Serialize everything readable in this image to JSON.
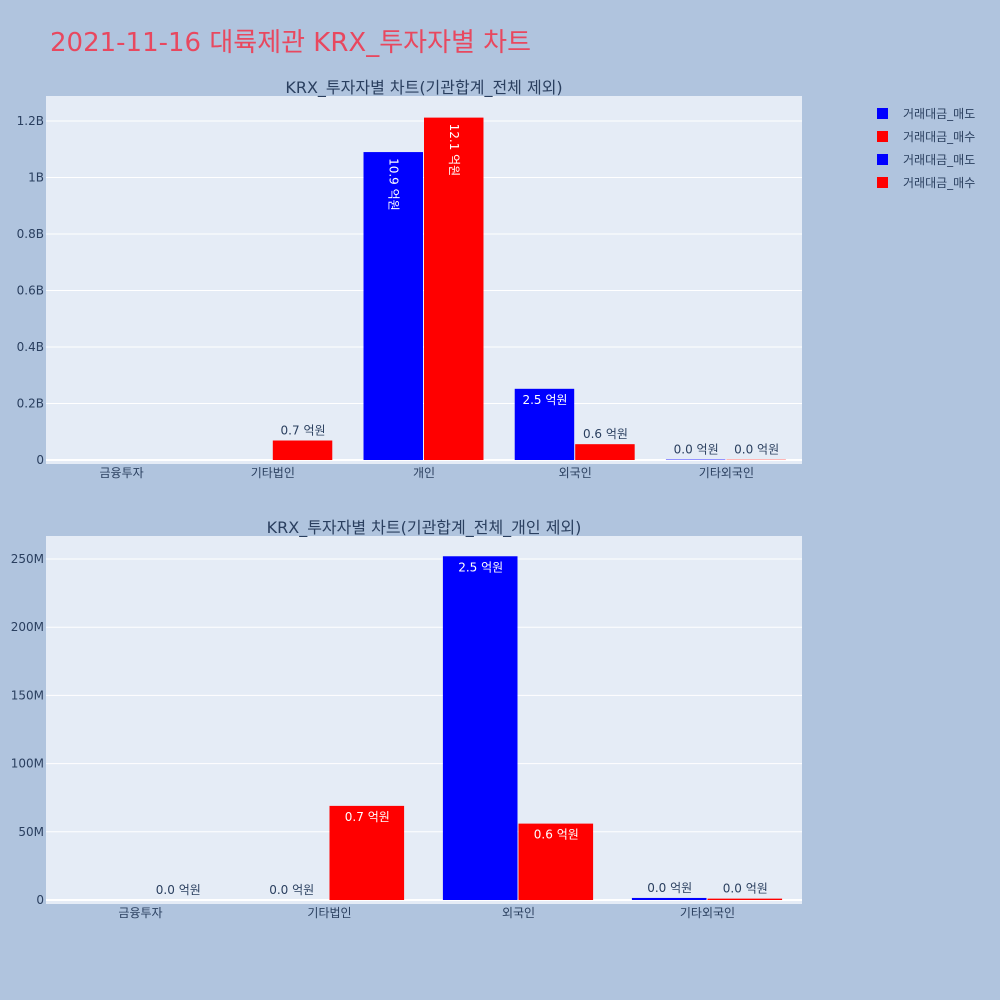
{
  "title": "2021-11-16 대륙제관 KRX_투자자별 차트",
  "colors": {
    "sell": "#0000ff",
    "buy": "#ff0000",
    "plot_bg": "#e5ecf6",
    "page_bg": "#b0c4de",
    "title": "#e8485f"
  },
  "legend": [
    {
      "name": "거래대금_매도",
      "color": "#0000ff"
    },
    {
      "name": "거래대금_매수",
      "color": "#ff0000"
    },
    {
      "name": "거래대금_매도",
      "color": "#0000ff"
    },
    {
      "name": "거래대금_매수",
      "color": "#ff0000"
    }
  ],
  "chart_data": [
    {
      "type": "bar",
      "title": "KRX_투자자별 차트(기관합계_전체 제외)",
      "categories": [
        "금융투자",
        "기타법인",
        "개인",
        "외국인",
        "기타외국인"
      ],
      "ylim": [
        0,
        1300000000
      ],
      "yticks": [
        0,
        200000000,
        400000000,
        600000000,
        800000000,
        1000000000,
        1200000000
      ],
      "ytick_labels": [
        "0",
        "0.2B",
        "0.4B",
        "0.6B",
        "0.8B",
        "1B",
        "1.2B"
      ],
      "series": [
        {
          "name": "거래대금_매도",
          "color": "#0000ff",
          "values": [
            null,
            null,
            1090000000,
            252000000,
            1500000
          ],
          "labels": [
            "",
            "",
            "10.9 억원",
            "2.5 억원",
            "0.0 억원"
          ],
          "label_pos": [
            "",
            "",
            "inside",
            "inside",
            "outside"
          ]
        },
        {
          "name": "거래대금_매수",
          "color": "#ff0000",
          "values": [
            null,
            69000000,
            1212000000,
            56000000,
            1000000
          ],
          "labels": [
            "",
            "0.7 억원",
            "12.1 억원",
            "0.6 억원",
            "0.0 억원"
          ],
          "label_pos": [
            "",
            "outside",
            "inside",
            "outside",
            "outside"
          ]
        }
      ]
    },
    {
      "type": "bar",
      "title": "KRX_투자자별 차트(기관합계_전체_개인 제외)",
      "categories": [
        "금융투자",
        "기타법인",
        "외국인",
        "기타외국인"
      ],
      "ylim": [
        0,
        266000000
      ],
      "yticks": [
        0,
        50000000,
        100000000,
        150000000,
        200000000,
        250000000
      ],
      "ytick_labels": [
        "0",
        "50M",
        "100M",
        "150M",
        "200M",
        "250M"
      ],
      "series": [
        {
          "name": "거래대금_매도",
          "color": "#0000ff",
          "values": [
            0,
            0,
            252000000,
            1500000
          ],
          "labels": [
            "",
            "0.0 억원",
            "2.5 억원",
            "0.0 억원"
          ],
          "label_pos": [
            "",
            "outside",
            "inside",
            "outside"
          ]
        },
        {
          "name": "거래대금_매수",
          "color": "#ff0000",
          "values": [
            0,
            69000000,
            56000000,
            1000000
          ],
          "labels": [
            "0.0 억원",
            "0.7 억원",
            "0.6 억원",
            "0.0 억원"
          ],
          "label_pos": [
            "outside",
            "inside",
            "inside",
            "outside"
          ]
        }
      ]
    }
  ]
}
